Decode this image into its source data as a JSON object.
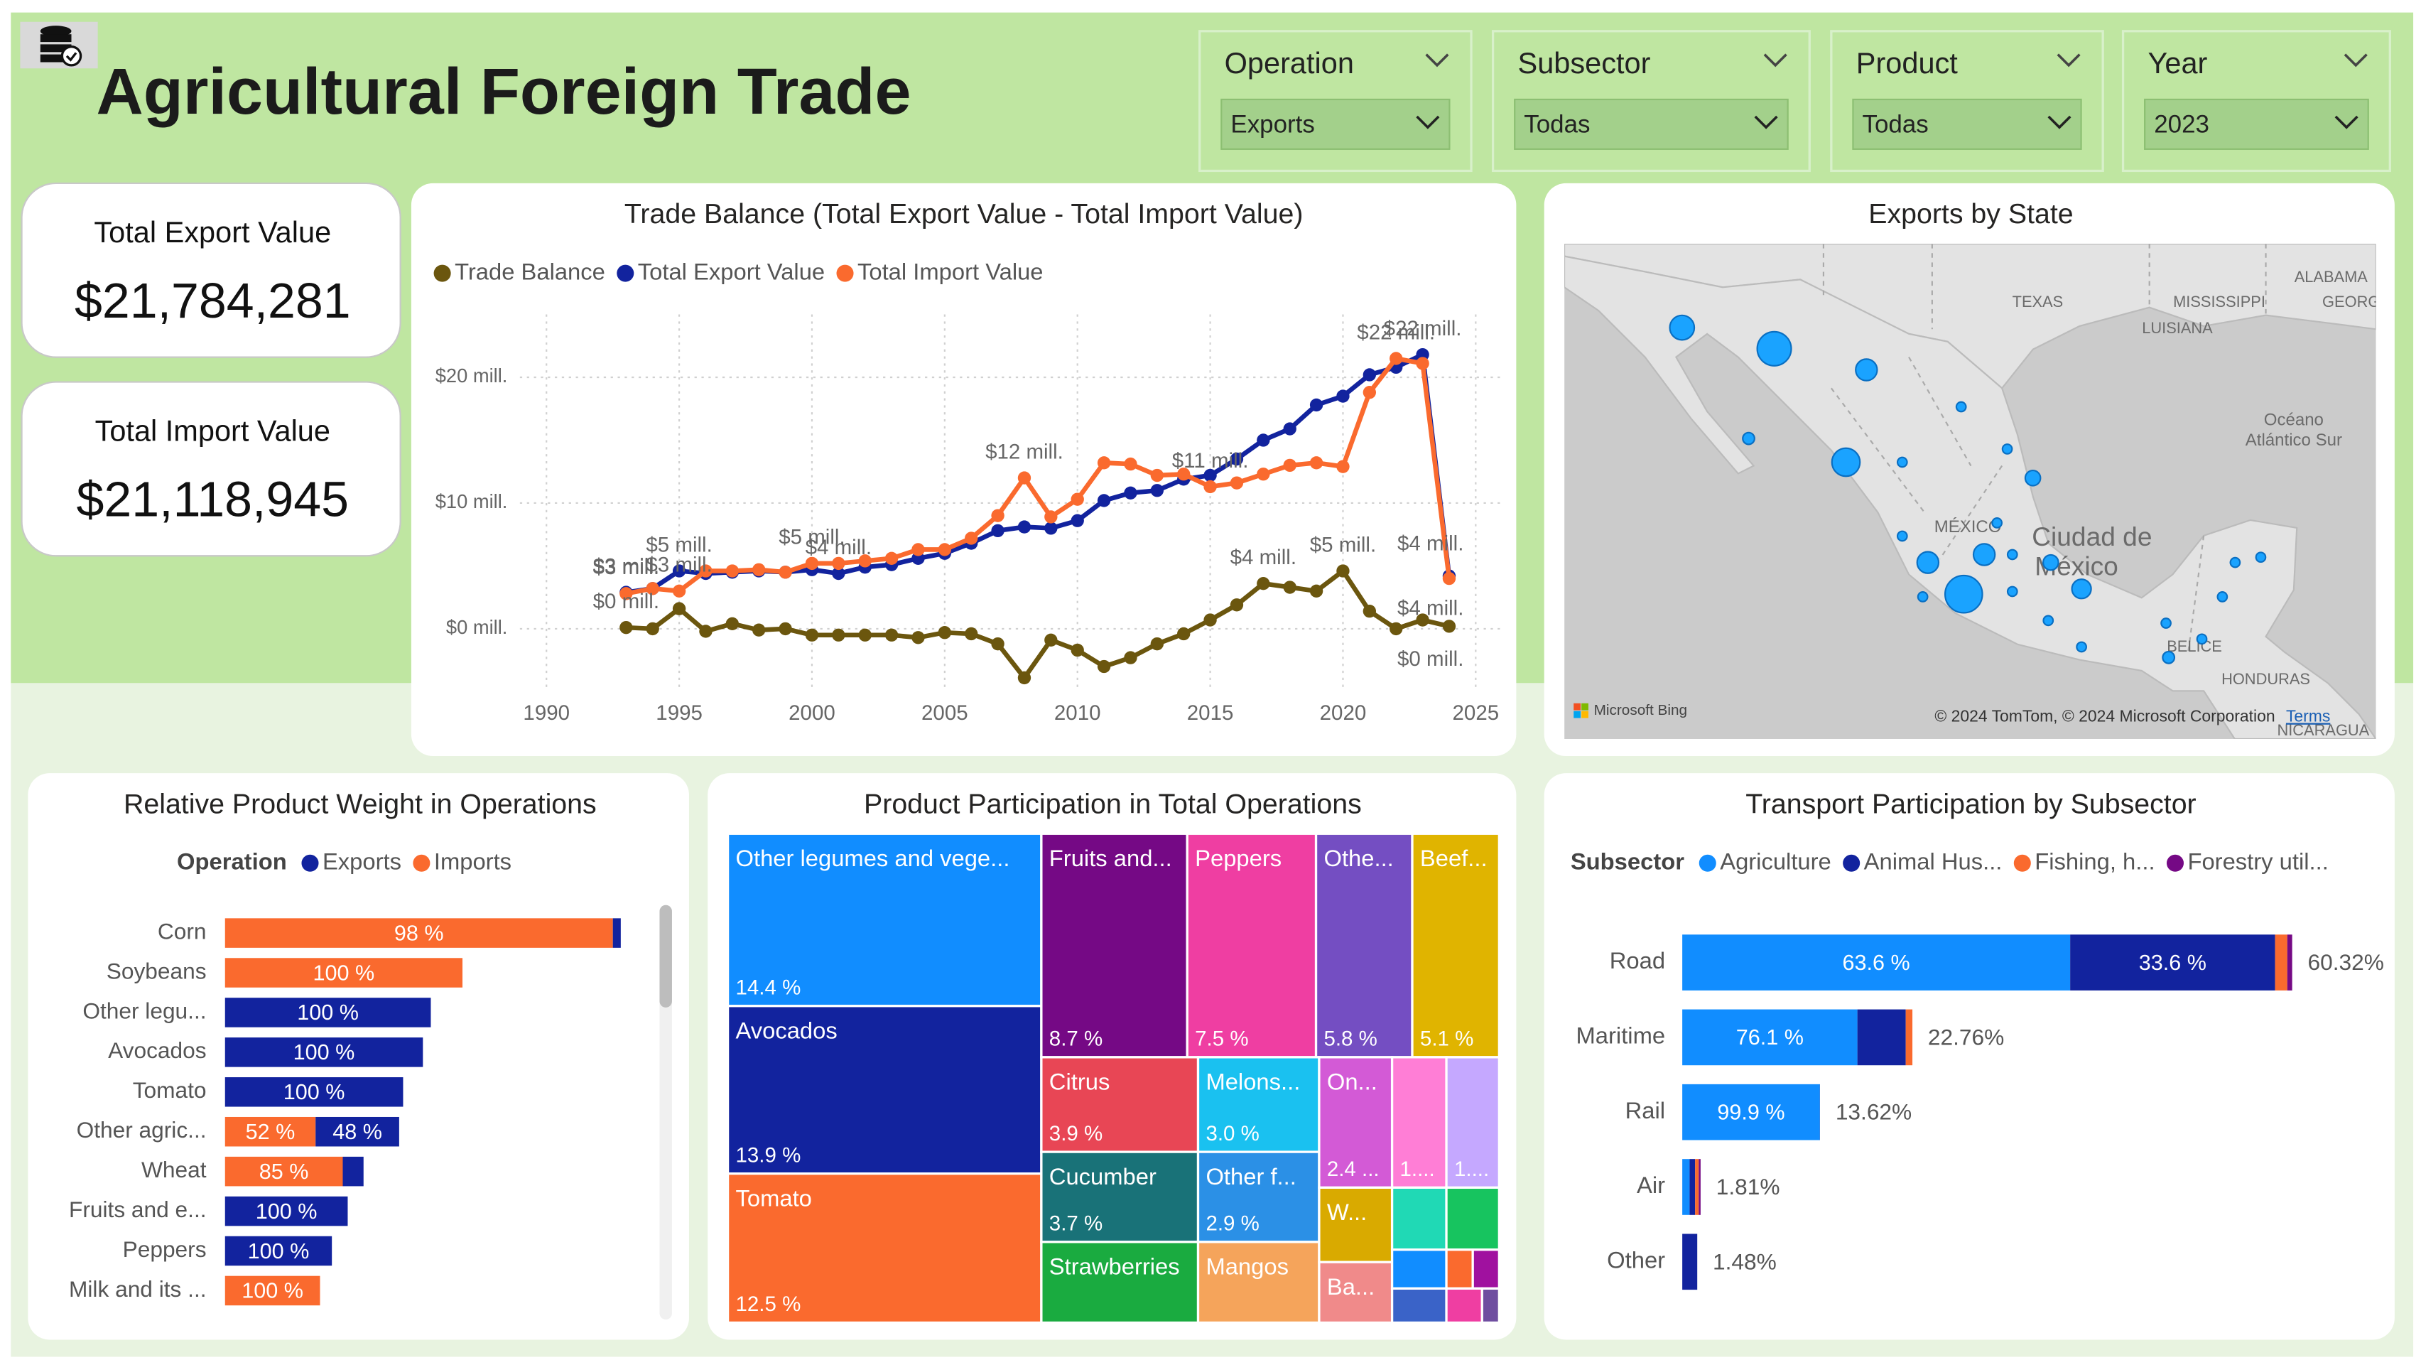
{
  "header": {
    "title": "Agricultural Foreign Trade"
  },
  "filters": [
    {
      "label": "Operation",
      "value": "Exports"
    },
    {
      "label": "Subsector",
      "value": "Todas"
    },
    {
      "label": "Product",
      "value": "Todas"
    },
    {
      "label": "Year",
      "value": "2023"
    }
  ],
  "kpis": [
    {
      "label": "Total Export Value",
      "value": "$21,784,281"
    },
    {
      "label": "Total Import Value",
      "value": "$21,118,945"
    }
  ],
  "chart_data": [
    {
      "type": "line",
      "title": "Trade Balance (Total Export Value - Total Import Value)",
      "x": [
        1993,
        1994,
        1995,
        1996,
        1997,
        1998,
        1999,
        2000,
        2001,
        2002,
        2003,
        2004,
        2005,
        2006,
        2007,
        2008,
        2009,
        2010,
        2011,
        2012,
        2013,
        2014,
        2015,
        2016,
        2017,
        2018,
        2019,
        2020,
        2021,
        2022,
        2023,
        2024
      ],
      "series": [
        {
          "name": "Trade Balance",
          "color": "#6b560e",
          "values": [
            0.1,
            0.0,
            1.6,
            -0.2,
            0.4,
            -0.1,
            0.0,
            -0.5,
            -0.5,
            -0.5,
            -0.5,
            -0.7,
            -0.3,
            -0.4,
            -1.2,
            -3.9,
            -0.9,
            -1.7,
            -3.0,
            -2.3,
            -1.2,
            -0.4,
            0.7,
            1.9,
            3.6,
            3.3,
            3.0,
            4.6,
            1.4,
            0.0,
            0.7,
            0.2
          ],
          "value_labels": [
            "$0 mill.",
            null,
            null,
            null,
            null,
            null,
            null,
            null,
            null,
            null,
            null,
            null,
            null,
            null,
            null,
            null,
            null,
            null,
            null,
            null,
            null,
            null,
            null,
            null,
            "$4 mill.",
            null,
            null,
            "$5 mill.",
            null,
            null,
            null,
            "$0 mill."
          ]
        },
        {
          "name": "Total Export Value",
          "color": "#12239e",
          "values": [
            2.9,
            3.2,
            4.6,
            4.4,
            4.5,
            4.6,
            4.5,
            4.7,
            4.4,
            4.9,
            5.1,
            5.6,
            6.0,
            6.8,
            7.8,
            8.1,
            8.0,
            8.6,
            10.2,
            10.8,
            11.0,
            11.9,
            12.2,
            13.5,
            15.0,
            15.9,
            17.8,
            18.5,
            20.2,
            20.8,
            21.8,
            4.2
          ],
          "value_labels": [
            "$3 mill.",
            null,
            "$5 mill.",
            null,
            null,
            null,
            null,
            null,
            "$4 mill.",
            null,
            null,
            null,
            null,
            null,
            null,
            null,
            null,
            null,
            null,
            null,
            null,
            null,
            null,
            null,
            null,
            null,
            null,
            null,
            null,
            null,
            "$22 mill.",
            "$4 mill."
          ]
        },
        {
          "name": "Total Import Value",
          "color": "#fa6a2e",
          "values": [
            2.8,
            3.2,
            3.0,
            4.6,
            4.6,
            4.7,
            4.5,
            5.2,
            5.2,
            5.4,
            5.6,
            6.3,
            6.3,
            7.2,
            9.0,
            12.0,
            8.9,
            10.3,
            13.2,
            13.1,
            12.2,
            12.3,
            11.3,
            11.6,
            12.3,
            13.0,
            13.2,
            12.9,
            18.8,
            21.5,
            21.1,
            4.0
          ],
          "value_labels": [
            "$3 mill.",
            null,
            "$3 mill.",
            null,
            null,
            null,
            null,
            "$5 mill.",
            null,
            null,
            null,
            null,
            null,
            null,
            null,
            "$12 mill.",
            null,
            null,
            null,
            null,
            null,
            null,
            "$11 mill.",
            null,
            null,
            null,
            null,
            null,
            null,
            "$22 mill.",
            null,
            "$4 mill."
          ]
        }
      ],
      "xlim": [
        1989,
        2026
      ],
      "xticks": [
        1990,
        1995,
        2000,
        2005,
        2010,
        2015,
        2020,
        2025
      ],
      "ylim": [
        -5,
        25
      ],
      "yticks": [
        {
          "value": 0,
          "label": "$0 mill."
        },
        {
          "value": 10,
          "label": "$10 mill."
        },
        {
          "value": 20,
          "label": "$20 mill."
        }
      ],
      "grid": true
    },
    {
      "type": "map",
      "title": "Exports by State",
      "color": "#1aa3ff",
      "points": [
        {
          "lon": -112.2,
          "lat": 29.4,
          "value": 1.3
        },
        {
          "lon": -108.6,
          "lat": 28.6,
          "value": 2.5
        },
        {
          "lon": -105.0,
          "lat": 27.8,
          "value": 1.0
        },
        {
          "lon": -101.3,
          "lat": 26.4,
          "value": 0.2
        },
        {
          "lon": -109.6,
          "lat": 25.2,
          "value": 0.3
        },
        {
          "lon": -105.8,
          "lat": 24.3,
          "value": 1.7
        },
        {
          "lon": -103.6,
          "lat": 24.3,
          "value": 0.2
        },
        {
          "lon": -99.5,
          "lat": 24.8,
          "value": 0.2
        },
        {
          "lon": -98.5,
          "lat": 23.7,
          "value": 0.5
        },
        {
          "lon": -99.9,
          "lat": 22.0,
          "value": 0.2
        },
        {
          "lon": -103.6,
          "lat": 21.5,
          "value": 0.2
        },
        {
          "lon": -102.6,
          "lat": 20.5,
          "value": 1.0
        },
        {
          "lon": -100.4,
          "lat": 20.8,
          "value": 1.0
        },
        {
          "lon": -101.2,
          "lat": 19.3,
          "value": 3.0
        },
        {
          "lon": -99.3,
          "lat": 20.8,
          "value": 0.2
        },
        {
          "lon": -97.8,
          "lat": 20.5,
          "value": 0.5
        },
        {
          "lon": -99.3,
          "lat": 19.4,
          "value": 0.2
        },
        {
          "lon": -96.6,
          "lat": 19.5,
          "value": 0.8
        },
        {
          "lon": -102.8,
          "lat": 19.2,
          "value": 0.2
        },
        {
          "lon": -93.3,
          "lat": 18.2,
          "value": 0.2
        },
        {
          "lon": -90.6,
          "lat": 20.5,
          "value": 0.2
        },
        {
          "lon": -89.6,
          "lat": 20.7,
          "value": 0.2
        },
        {
          "lon": -91.1,
          "lat": 19.2,
          "value": 0.2
        },
        {
          "lon": -93.2,
          "lat": 16.9,
          "value": 0.3
        },
        {
          "lon": -96.6,
          "lat": 17.3,
          "value": 0.2
        },
        {
          "lon": -97.9,
          "lat": 18.3,
          "value": 0.2
        },
        {
          "lon": -91.9,
          "lat": 17.6,
          "value": 0.2
        }
      ],
      "place_labels": [
        "TEXAS",
        "MISSISSIPPI",
        "ALABAMA",
        "GEORG",
        "LUISIANA",
        "Océano",
        "Atlántico Sur",
        "MÉXICO",
        "Ciudad de",
        "México",
        "BELICE",
        "HONDURAS",
        "NICARAGUA"
      ],
      "credits": [
        "Microsoft Bing",
        "© 2024 TomTom, © 2024 Microsoft Corporation",
        "Terms"
      ]
    },
    {
      "type": "bar",
      "title": "Relative Product Weight in Operations",
      "legend_title": "Operation",
      "categories": [
        "Corn",
        "Soybeans",
        "Other legu...",
        "Avocados",
        "Tomato",
        "Other agric...",
        "Wheat",
        "Fruits and e...",
        "Peppers",
        "Milk and its ..."
      ],
      "totals": [
        5.0,
        3.0,
        2.6,
        2.5,
        2.25,
        2.2,
        1.75,
        1.55,
        1.35,
        1.2
      ],
      "series": [
        {
          "name": "Exports",
          "color": "#12239e",
          "values": [
            2,
            0,
            100,
            100,
            100,
            48,
            15,
            100,
            100,
            0
          ],
          "value_labels": [
            null,
            null,
            "100 %",
            "100 %",
            "100 %",
            "48 %",
            null,
            "100 %",
            "100 %",
            null
          ]
        },
        {
          "name": "Imports",
          "color": "#fa6a2e",
          "values": [
            98,
            100,
            0,
            0,
            0,
            52,
            85,
            0,
            0,
            100
          ],
          "value_labels": [
            "98 %",
            "100 %",
            null,
            null,
            null,
            "52 %",
            "85 %",
            null,
            null,
            "100 %"
          ]
        }
      ]
    },
    {
      "type": "treemap",
      "title": "Product Participation in Total Operations",
      "categories": [
        "Other legumes and vege...",
        "Avocados",
        "Tomato",
        "Fruits and...",
        "Peppers",
        "Othe...",
        "Beef...",
        "Citrus",
        "Melons...",
        "Cucumber",
        "Other f...",
        "Strawberries",
        "Mangos",
        "On...",
        null,
        null,
        "W...",
        "Ba...",
        null,
        null,
        null,
        null,
        null,
        null,
        null,
        null
      ],
      "values": [
        14.4,
        13.9,
        12.5,
        8.7,
        7.5,
        5.8,
        5.1,
        3.9,
        3.0,
        3.7,
        2.9,
        3.4,
        2.6,
        2.4,
        1.9,
        1.8,
        1.4,
        1.2,
        0.9,
        0.9,
        0.6,
        0.3,
        0.3,
        0.5,
        0.3,
        0.2
      ],
      "value_labels": [
        "14.4 %",
        "13.9 %",
        "12.5 %",
        "8.7 %",
        "7.5 %",
        "5.8 %",
        "5.1 %",
        "3.9 %",
        "3.0 %",
        "3.7 %",
        "2.9 %",
        null,
        null,
        "2.4 ...",
        "1....",
        "1....",
        null,
        null,
        null,
        null,
        null,
        null,
        null,
        null,
        null,
        null
      ],
      "colors": [
        "#118dff",
        "#12239e",
        "#fa6a2e",
        "#750985",
        "#ef3ea2",
        "#744ec2",
        "#e0b400",
        "#e84655",
        "#1ac1f0",
        "#197278",
        "#2b90e6",
        "#1aab40",
        "#f5a45b",
        "#d35ad6",
        "#ff7ed6",
        "#c5a8ff",
        "#d9aa00",
        "#f08a8a",
        "#20d9b5",
        "#17c45f",
        "#118dff",
        "#fa6a2e",
        "#a0119f",
        "#3a63c8",
        "#ef3ea2",
        "#6f4ea0"
      ]
    },
    {
      "type": "bar",
      "title": "Transport Participation by Subsector",
      "legend_title": "Subsector",
      "categories": [
        "Road",
        "Maritime",
        "Rail",
        "Air",
        "Other"
      ],
      "totals": [
        60.32,
        22.76,
        13.62,
        1.81,
        1.48
      ],
      "total_labels": [
        "60.32%",
        "22.76%",
        "13.62%",
        "1.81%",
        "1.48%"
      ],
      "series": [
        {
          "name": "Agriculture",
          "color": "#118dff",
          "values": [
            63.6,
            76.1,
            99.9,
            40,
            0
          ],
          "value_labels": [
            "63.6 %",
            "76.1 %",
            "99.9 %",
            null,
            null
          ]
        },
        {
          "name": "Animal Hus...",
          "color": "#12239e",
          "values": [
            33.6,
            21.0,
            0.1,
            30,
            100
          ],
          "value_labels": [
            "33.6 %",
            null,
            null,
            null,
            null
          ]
        },
        {
          "name": "Fishing, h...",
          "color": "#fa6a2e",
          "values": [
            2.0,
            2.9,
            0,
            20,
            0
          ],
          "value_labels": [
            null,
            null,
            null,
            null,
            null
          ]
        },
        {
          "name": "Forestry util...",
          "color": "#750985",
          "values": [
            0.8,
            0,
            0,
            10,
            0
          ],
          "value_labels": [
            null,
            null,
            null,
            null,
            null
          ]
        }
      ]
    }
  ]
}
